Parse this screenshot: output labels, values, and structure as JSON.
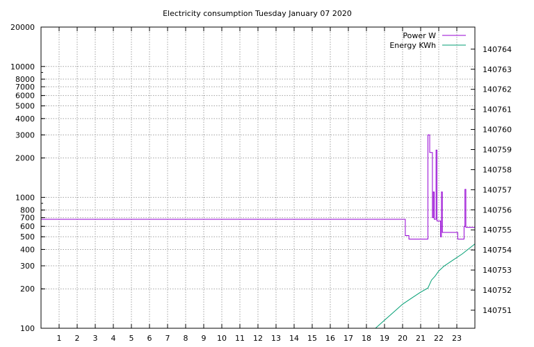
{
  "chart_data": {
    "type": "line",
    "title": "Electricity consumption Tuesday January 07 2020",
    "xlim": [
      0,
      24
    ],
    "x_ticks": [
      1,
      2,
      3,
      4,
      5,
      6,
      7,
      8,
      9,
      10,
      11,
      12,
      13,
      14,
      15,
      16,
      17,
      18,
      19,
      20,
      21,
      22,
      23
    ],
    "y_left": {
      "scale": "log",
      "range": [
        100,
        20000
      ],
      "ticks": [
        100,
        200,
        300,
        400,
        500,
        600,
        700,
        800,
        1000,
        2000,
        3000,
        4000,
        5000,
        6000,
        7000,
        8000,
        10000,
        20000
      ]
    },
    "y_right": {
      "scale": "linear",
      "range": [
        140750.1,
        140765.1
      ],
      "ticks": [
        140751,
        140752,
        140753,
        140754,
        140755,
        140756,
        140757,
        140758,
        140759,
        140760,
        140761,
        140762,
        140763,
        140764
      ]
    },
    "grid": true,
    "legend_position": "top-right",
    "series": [
      {
        "name": "Power W",
        "axis": "left",
        "color": "#9400d3",
        "step": true,
        "points": [
          [
            0,
            680
          ],
          [
            20.15,
            680
          ],
          [
            20.15,
            510
          ],
          [
            20.35,
            510
          ],
          [
            20.35,
            480
          ],
          [
            21.4,
            480
          ],
          [
            21.4,
            3000
          ],
          [
            21.5,
            3000
          ],
          [
            21.5,
            2200
          ],
          [
            21.65,
            2200
          ],
          [
            21.65,
            700
          ],
          [
            21.7,
            700
          ],
          [
            21.7,
            1100
          ],
          [
            21.75,
            1100
          ],
          [
            21.75,
            680
          ],
          [
            21.85,
            680
          ],
          [
            21.85,
            2300
          ],
          [
            21.9,
            2300
          ],
          [
            21.9,
            660
          ],
          [
            22.1,
            660
          ],
          [
            22.1,
            500
          ],
          [
            22.15,
            500
          ],
          [
            22.15,
            1100
          ],
          [
            22.2,
            1100
          ],
          [
            22.2,
            540
          ],
          [
            23.05,
            540
          ],
          [
            23.05,
            480
          ],
          [
            23.4,
            480
          ],
          [
            23.4,
            600
          ],
          [
            23.45,
            600
          ],
          [
            23.45,
            1150
          ],
          [
            23.5,
            1150
          ],
          [
            23.5,
            590
          ],
          [
            24,
            590
          ]
        ]
      },
      {
        "name": "Energy KWh",
        "axis": "right",
        "color": "#009e73",
        "step": false,
        "points": [
          [
            18.5,
            140750.1
          ],
          [
            19.0,
            140750.5
          ],
          [
            19.5,
            140750.9
          ],
          [
            20.0,
            140751.3
          ],
          [
            20.5,
            140751.6
          ],
          [
            21.0,
            140751.9
          ],
          [
            21.4,
            140752.1
          ],
          [
            21.6,
            140752.5
          ],
          [
            21.8,
            140752.7
          ],
          [
            22.0,
            140752.95
          ],
          [
            22.3,
            140753.2
          ],
          [
            22.8,
            140753.5
          ],
          [
            23.3,
            140753.8
          ],
          [
            24,
            140754.3
          ]
        ]
      }
    ]
  }
}
